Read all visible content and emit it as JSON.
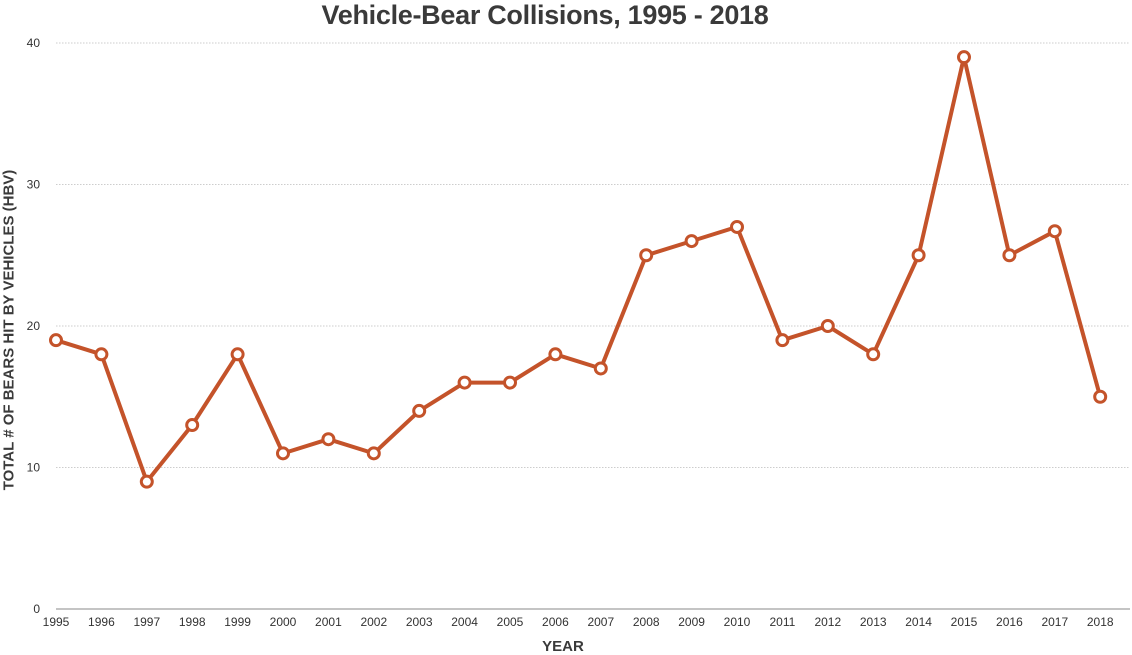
{
  "chart_data": {
    "type": "line",
    "title": "Vehicle-Bear Collisions, 1995 - 2018",
    "xlabel": "YEAR",
    "ylabel": "TOTAL # OF BEARS HIT BY VEHICLES  (HBV)",
    "categories": [
      "1995",
      "1996",
      "1997",
      "1998",
      "1999",
      "2000",
      "2001",
      "2002",
      "2003",
      "2004",
      "2005",
      "2006",
      "2007",
      "2008",
      "2009",
      "2010",
      "2011",
      "2012",
      "2013",
      "2014",
      "2015",
      "2016",
      "2017",
      "2018"
    ],
    "series": [
      {
        "values": [
          19,
          18,
          9,
          13,
          18,
          11,
          12,
          11,
          14,
          16,
          16,
          18,
          17,
          25,
          26,
          27,
          19,
          20,
          18,
          25,
          39,
          25,
          26.7,
          15
        ]
      }
    ],
    "ylim": [
      0,
      40
    ],
    "yticks": [
      0,
      10,
      20,
      30,
      40
    ],
    "grid": true,
    "legend": "none",
    "colors": {
      "line": "#c4532a",
      "grid": "#bdbdbd",
      "marker_fill": "#ffffff"
    }
  }
}
